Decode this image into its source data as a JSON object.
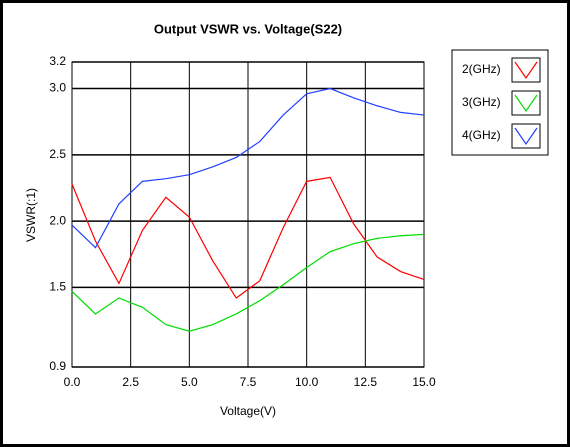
{
  "chart_data": {
    "type": "line",
    "title": "Output VSWR vs. Voltage(S22)",
    "x_label": "Voltage(V)",
    "y_label": "VSWR(:1)",
    "x": [
      0,
      1,
      2,
      3,
      4,
      5,
      6,
      7,
      8,
      9,
      10,
      11,
      12,
      13,
      14,
      15
    ],
    "series": [
      {
        "name": "2(GHz)",
        "color": "#ff0000",
        "values": [
          2.28,
          1.85,
          1.53,
          1.93,
          2.18,
          2.03,
          1.7,
          1.42,
          1.55,
          1.95,
          2.3,
          2.33,
          1.98,
          1.73,
          1.62,
          1.56
        ]
      },
      {
        "name": "3(GHz)",
        "color": "#00dd00",
        "values": [
          1.47,
          1.3,
          1.42,
          1.35,
          1.22,
          1.17,
          1.22,
          1.3,
          1.4,
          1.52,
          1.65,
          1.77,
          1.83,
          1.87,
          1.89,
          1.9
        ]
      },
      {
        "name": "4(GHz)",
        "color": "#2040ff",
        "values": [
          1.97,
          1.8,
          2.13,
          2.3,
          2.32,
          2.35,
          2.41,
          2.48,
          2.6,
          2.8,
          2.96,
          3.0,
          2.93,
          2.87,
          2.82,
          2.8
        ]
      }
    ],
    "xlim": [
      0,
      15
    ],
    "xticks": [
      {
        "value": 0,
        "label": "0.0"
      },
      2.5,
      {
        "value": 5,
        "label": "5.0"
      },
      7.5,
      {
        "value": 10,
        "label": "10.0"
      },
      12.5,
      {
        "value": 15,
        "label": "15.0"
      }
    ],
    "ylim": [
      0.9,
      3.2
    ],
    "yticks": [
      0.9,
      1.5,
      {
        "value": 2,
        "label": "2.0"
      },
      2.5,
      {
        "value": 3,
        "label": "3.0"
      },
      3.2
    ],
    "grid": true,
    "legend": "right"
  }
}
